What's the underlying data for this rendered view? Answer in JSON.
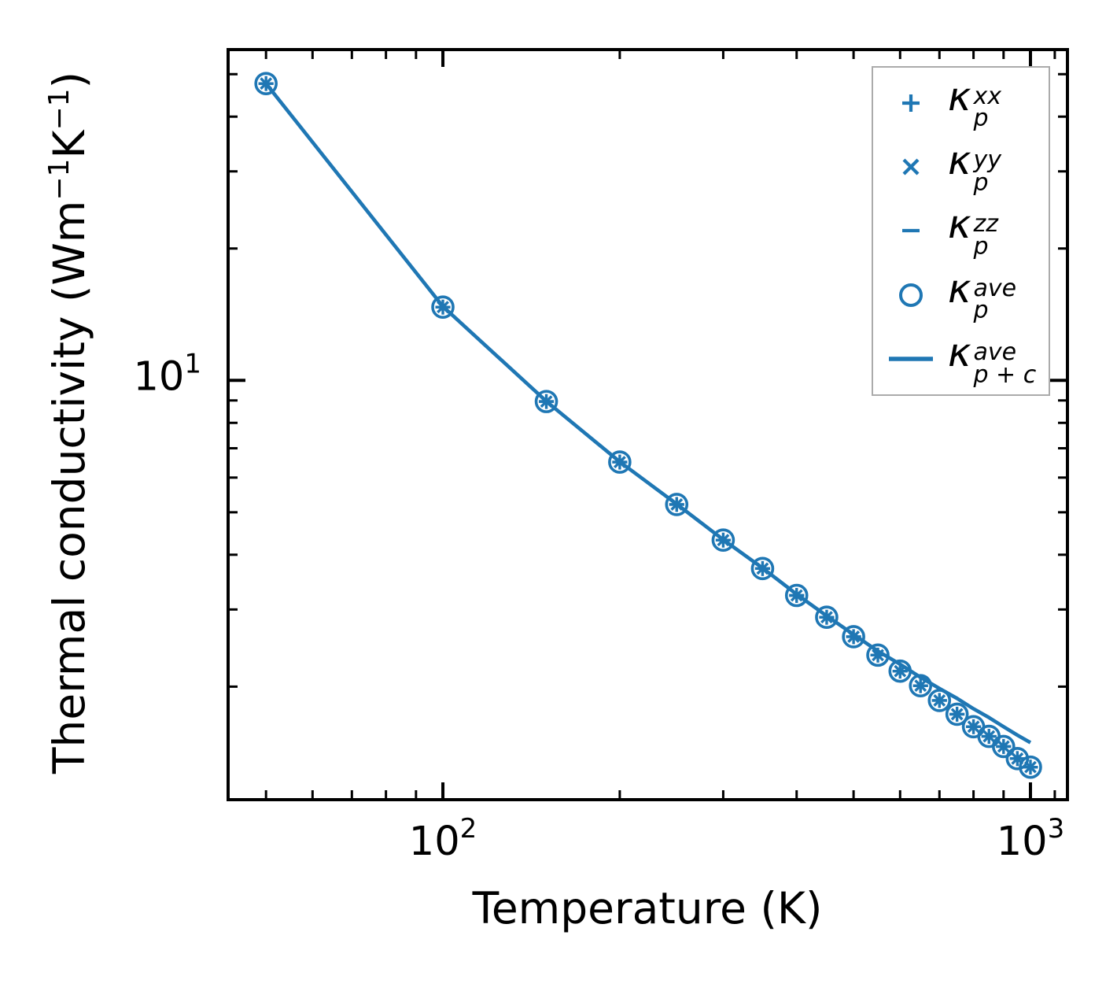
{
  "figure": {
    "background": "#ffffff",
    "accent_color": "#1f77b4",
    "axis_color": "#000000",
    "legend_border_color": "#ababab"
  },
  "chart_data": {
    "type": "line",
    "x_scale": "log",
    "y_scale": "log",
    "title": "",
    "xlabel": "Temperature (K)",
    "ylabel_parts": [
      {
        "t": "Thermal conductivity (Wm"
      },
      {
        "sup": "−1"
      },
      {
        "t": "K"
      },
      {
        "sup": "−1"
      },
      {
        "t": ")"
      }
    ],
    "xlim": [
      43.1,
      1156
    ],
    "ylim": [
      1.104,
      56.9
    ],
    "grid": false,
    "tick_direction": "in",
    "ticks_all_sides": true,
    "x": [
      50,
      100,
      150,
      200,
      250,
      300,
      350,
      400,
      450,
      500,
      550,
      600,
      650,
      700,
      750,
      800,
      850,
      900,
      950,
      1000
    ],
    "series": [
      {
        "name": "kappa_p_xx",
        "legend_index": 0,
        "marker": "plus",
        "line": "none",
        "values": [
          47.6,
          14.7,
          8.95,
          6.51,
          5.21,
          4.32,
          3.72,
          3.23,
          2.88,
          2.6,
          2.36,
          2.17,
          2.01,
          1.86,
          1.73,
          1.62,
          1.54,
          1.46,
          1.37,
          1.31
        ]
      },
      {
        "name": "kappa_p_yy",
        "legend_index": 1,
        "marker": "x",
        "line": "none",
        "values": [
          47.6,
          14.7,
          8.95,
          6.51,
          5.21,
          4.32,
          3.72,
          3.23,
          2.88,
          2.6,
          2.36,
          2.17,
          2.01,
          1.86,
          1.73,
          1.62,
          1.54,
          1.46,
          1.37,
          1.31
        ]
      },
      {
        "name": "kappa_p_zz",
        "legend_index": 2,
        "marker": "hline",
        "line": "none",
        "values": [
          47.6,
          14.7,
          8.95,
          6.51,
          5.21,
          4.32,
          3.72,
          3.23,
          2.88,
          2.6,
          2.36,
          2.17,
          2.01,
          1.86,
          1.73,
          1.62,
          1.54,
          1.46,
          1.37,
          1.31
        ]
      },
      {
        "name": "kappa_p_ave",
        "legend_index": 3,
        "marker": "circle",
        "line": "none",
        "values": [
          47.6,
          14.7,
          8.95,
          6.51,
          5.21,
          4.32,
          3.72,
          3.23,
          2.88,
          2.6,
          2.36,
          2.17,
          2.01,
          1.86,
          1.73,
          1.62,
          1.54,
          1.46,
          1.37,
          1.31
        ]
      },
      {
        "name": "kappa_p_plus_c_ave",
        "legend_index": 4,
        "marker": "none",
        "line": "solid",
        "values": [
          47.6,
          14.75,
          8.96,
          6.52,
          5.22,
          4.33,
          3.73,
          3.25,
          2.9,
          2.63,
          2.41,
          2.25,
          2.1,
          1.98,
          1.88,
          1.78,
          1.7,
          1.62,
          1.55,
          1.49
        ]
      }
    ],
    "x_major_ticks": [
      100,
      1000
    ],
    "x_minor_ticks": [
      50,
      60,
      70,
      80,
      90,
      200,
      300,
      400,
      500,
      600,
      700,
      800,
      900,
      1100
    ],
    "y_major_ticks": [
      10
    ],
    "y_minor_ticks": [
      50,
      40,
      30,
      20,
      9,
      8,
      7,
      6,
      5,
      4,
      3,
      2
    ],
    "x_tick_labels": [
      {
        "value": 100,
        "base": "10",
        "exp": "2"
      },
      {
        "value": 1000,
        "base": "10",
        "exp": "3"
      }
    ],
    "y_tick_labels": [
      {
        "value": 10,
        "base": "10",
        "exp": "1"
      }
    ],
    "legend": {
      "position": "upper right",
      "entries": [
        {
          "marker": "plus",
          "base": "κ",
          "sup": "xx",
          "sub": "p"
        },
        {
          "marker": "x",
          "base": "κ",
          "sup": "yy",
          "sub": "p"
        },
        {
          "marker": "hline",
          "base": "κ",
          "sup": "zz",
          "sub": "p"
        },
        {
          "marker": "circle",
          "base": "κ",
          "sup": "ave",
          "sub": "p"
        },
        {
          "marker": "line",
          "base": "κ",
          "sup": "ave",
          "sub": "p + c"
        }
      ]
    }
  }
}
